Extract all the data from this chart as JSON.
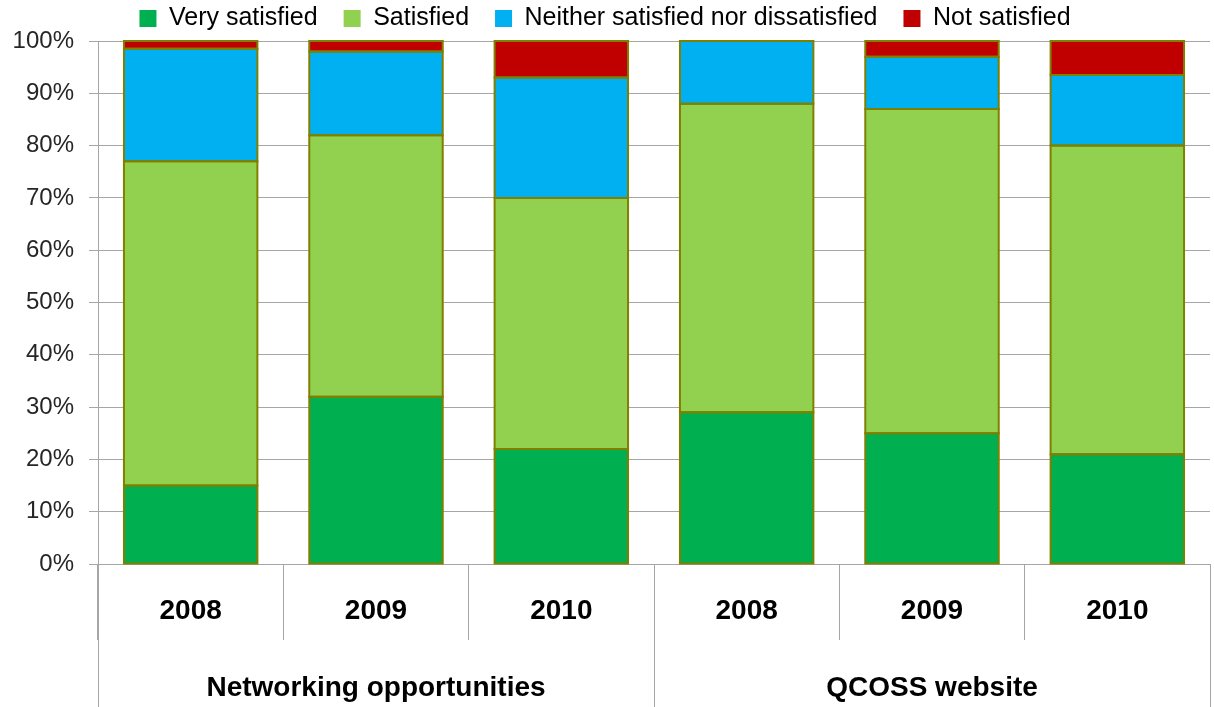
{
  "chart_data": {
    "type": "bar",
    "stacked": true,
    "categories": [
      "2008",
      "2009",
      "2010",
      "2008",
      "2009",
      "2010"
    ],
    "series": [
      {
        "name": "Very satisfied",
        "color": "#00b050",
        "values": [
          15,
          32,
          22,
          29,
          25,
          21
        ]
      },
      {
        "name": "Satisfied",
        "color": "#92d050",
        "values": [
          62,
          50,
          48,
          59,
          62,
          59
        ]
      },
      {
        "name": "Neither satisfied nor dissatisfied",
        "color": "#00b0f0",
        "values": [
          21.5,
          16,
          23,
          12,
          10,
          13.5
        ]
      },
      {
        "name": "Not satisfied",
        "color": "#c00000",
        "values": [
          1.5,
          2,
          7,
          0,
          3,
          6.5
        ]
      }
    ],
    "ylim": [
      0,
      100
    ],
    "yticks": [
      {
        "value": 0,
        "label": "0%"
      },
      {
        "value": 10,
        "label": "10%"
      },
      {
        "value": 20,
        "label": "20%"
      },
      {
        "value": 30,
        "label": "30%"
      },
      {
        "value": 40,
        "label": "40%"
      },
      {
        "value": 50,
        "label": "50%"
      },
      {
        "value": 60,
        "label": "60%"
      },
      {
        "value": 70,
        "label": "70%"
      },
      {
        "value": 80,
        "label": "80%"
      },
      {
        "value": 90,
        "label": "90%"
      },
      {
        "value": 100,
        "label": "100%"
      }
    ],
    "grid": "y",
    "legend": "top",
    "annotations": [
      "Networking opportunities",
      "QCOSS website"
    ]
  }
}
